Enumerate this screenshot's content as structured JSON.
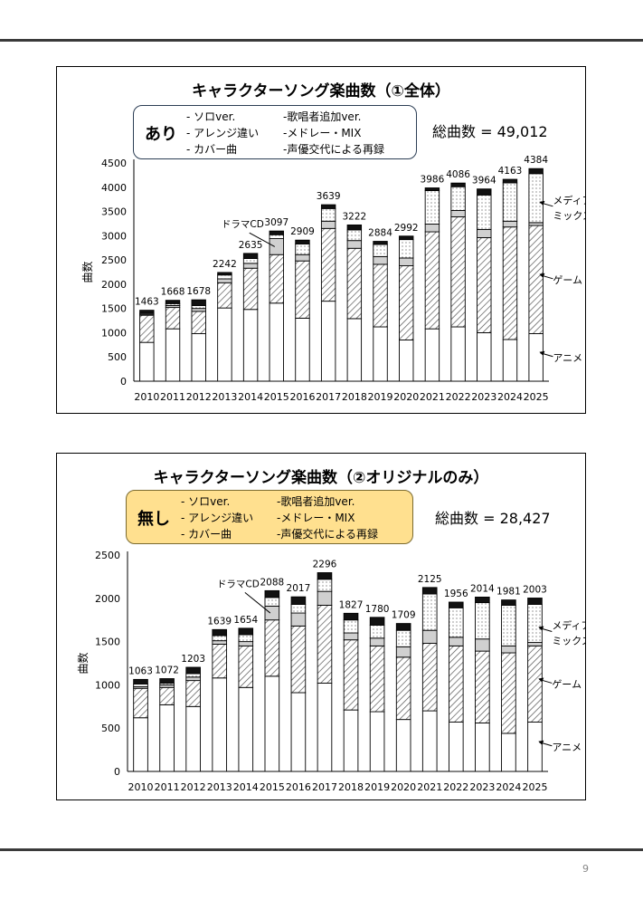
{
  "page_number": "9",
  "chart_data": [
    {
      "type": "bar",
      "stacked": true,
      "title": "キャラクターソング楽曲数（①全体）",
      "ylabel": "曲数",
      "ylim": [
        0,
        4500
      ],
      "yticks": [
        0,
        500,
        1000,
        1500,
        2000,
        2500,
        3000,
        3500,
        4000,
        4500
      ],
      "categories": [
        "2010",
        "2011",
        "2012",
        "2013",
        "2014",
        "2015",
        "2016",
        "2017",
        "2018",
        "2019",
        "2020",
        "2021",
        "2022",
        "2023",
        "2024",
        "2025"
      ],
      "totals": [
        1463,
        1668,
        1678,
        2242,
        2635,
        3097,
        2909,
        3639,
        3222,
        2884,
        2992,
        3986,
        4086,
        3964,
        4163,
        4384
      ],
      "total_labels": [
        "1463",
        "1668",
        "1678",
        "2242",
        "2635",
        "3097",
        "2909",
        "3639",
        "3222",
        "2884",
        "2992",
        "3986",
        "4086",
        "3964",
        "4163",
        "4384"
      ],
      "series": [
        {
          "name": "アニメ",
          "values": [
            800,
            1080,
            980,
            1510,
            1480,
            1610,
            1300,
            1650,
            1290,
            1120,
            850,
            1080,
            1120,
            1000,
            860,
            980
          ]
        },
        {
          "name": "ゲーム",
          "values": [
            560,
            440,
            460,
            520,
            850,
            1000,
            1180,
            1500,
            1450,
            1290,
            1530,
            2000,
            2270,
            1960,
            2320,
            2230
          ]
        },
        {
          "name": "ドラマCD",
          "values": [
            20,
            40,
            60,
            80,
            100,
            330,
            130,
            150,
            160,
            160,
            160,
            160,
            130,
            170,
            120,
            60
          ]
        },
        {
          "name": "メディアミックス",
          "values": [
            20,
            40,
            60,
            80,
            100,
            80,
            220,
            260,
            220,
            250,
            380,
            690,
            490,
            710,
            790,
            1010
          ]
        },
        {
          "name": "",
          "values": [
            63,
            68,
            118,
            52,
            105,
            77,
            79,
            79,
            102,
            64,
            72,
            56,
            76,
            124,
            73,
            104
          ]
        }
      ],
      "series_labels": {
        "drama": "ドラマCD",
        "media_line1": "メディア",
        "media_line2": "ミックス",
        "game": "ゲーム",
        "anime": "アニメ"
      },
      "badge": "あり",
      "notes": [
        "- ソロver.",
        "-歌唱者追加ver.",
        "- アレンジ違い",
        "-メドレー・MIX",
        "- カバー曲",
        "-声優交代による再録"
      ],
      "total_text": "総曲数 = 49,012"
    },
    {
      "type": "bar",
      "stacked": true,
      "title": "キャラクターソング楽曲数（②オリジナルのみ）",
      "ylabel": "曲数",
      "ylim": [
        0,
        2500
      ],
      "yticks": [
        0,
        500,
        1000,
        1500,
        2000,
        2500
      ],
      "categories": [
        "2010",
        "2011",
        "2012",
        "2013",
        "2014",
        "2015",
        "2016",
        "2017",
        "2018",
        "2019",
        "2020",
        "2021",
        "2022",
        "2023",
        "2024",
        "2025"
      ],
      "totals": [
        1063,
        1072,
        1203,
        1639,
        1654,
        2088,
        2017,
        2296,
        1827,
        1780,
        1709,
        2125,
        1956,
        2014,
        1981,
        2003
      ],
      "total_labels": [
        "1063",
        "1072",
        "1203",
        "1639",
        "1654",
        "2088",
        "2017",
        "2296",
        "1827",
        "1780",
        "1709",
        "2125",
        "1956",
        "2014",
        "1981",
        "2003"
      ],
      "series": [
        {
          "name": "アニメ",
          "values": [
            620,
            770,
            750,
            1080,
            970,
            1100,
            910,
            1020,
            710,
            690,
            600,
            700,
            570,
            560,
            440,
            570
          ]
        },
        {
          "name": "ゲーム",
          "values": [
            340,
            200,
            300,
            390,
            480,
            650,
            770,
            900,
            810,
            760,
            720,
            780,
            880,
            830,
            930,
            880
          ]
        },
        {
          "name": "ドラマCD",
          "values": [
            20,
            30,
            40,
            40,
            50,
            160,
            150,
            160,
            80,
            90,
            120,
            150,
            100,
            140,
            80,
            40
          ]
        },
        {
          "name": "メディアミックス",
          "values": [
            30,
            20,
            40,
            60,
            80,
            100,
            100,
            140,
            150,
            150,
            190,
            420,
            340,
            420,
            470,
            440
          ]
        },
        {
          "name": "",
          "values": [
            53,
            52,
            73,
            69,
            74,
            78,
            87,
            76,
            77,
            90,
            79,
            75,
            66,
            64,
            61,
            73
          ]
        }
      ],
      "series_labels": {
        "drama": "ドラマCD",
        "media_line1": "メディア",
        "media_line2": "ミックス",
        "game": "ゲーム",
        "anime": "アニメ"
      },
      "badge": "無し",
      "notes": [
        "- ソロver.",
        "-歌唱者追加ver.",
        "- アレンジ違い",
        "-メドレー・MIX",
        "- カバー曲",
        "-声優交代による再録"
      ],
      "total_text": "総曲数 = 28,427"
    }
  ]
}
